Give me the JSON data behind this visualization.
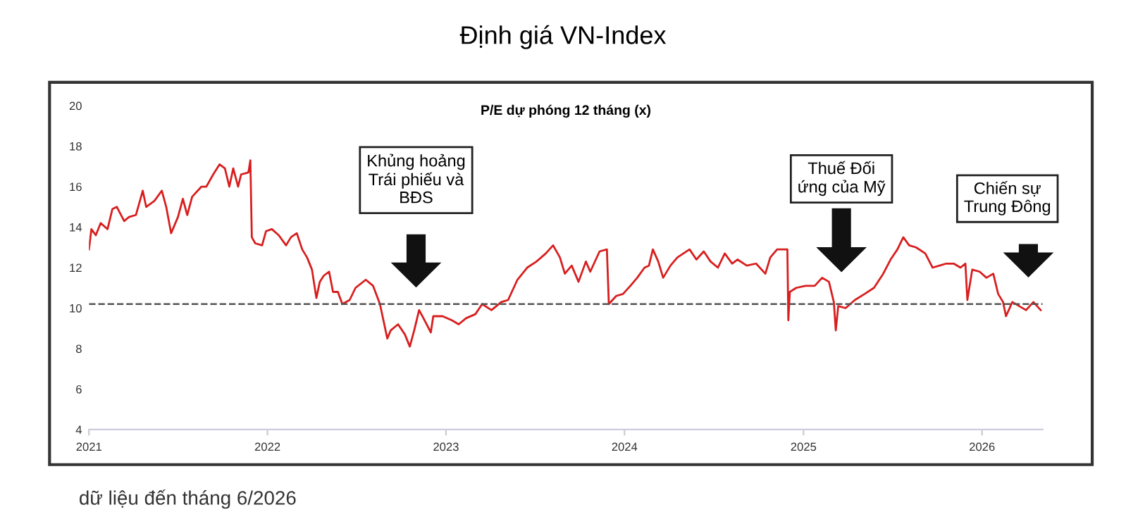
{
  "chart_data": {
    "type": "line",
    "title": "Định giá VN-Index",
    "subtitle": "P/E dự phóng 12 tháng (x)",
    "annotations": [
      "Khủng hoảng\nTrái phiếu và\nBĐS",
      "Thuế Đối\nứng của Mỹ",
      "Chiến sự\nTrung Đông",
      "dữ liệu đến tháng 6/2026"
    ],
    "x": [
      "2021-01-01",
      "2021-01-06",
      "2021-01-15",
      "2021-01-25",
      "2021-02-08",
      "2021-02-18",
      "2021-02-27",
      "2021-03-14",
      "2021-03-24",
      "2021-04-07",
      "2021-04-21",
      "2021-04-28",
      "2021-05-15",
      "2021-05-30",
      "2021-06-08",
      "2021-06-18",
      "2021-07-02",
      "2021-07-12",
      "2021-07-21",
      "2021-07-31",
      "2021-08-19",
      "2021-08-29",
      "2021-09-12",
      "2021-09-25",
      "2021-10-06",
      "2021-10-15",
      "2021-10-23",
      "2021-11-02",
      "2021-11-08",
      "2021-11-23",
      "2021-11-27",
      "2021-11-30",
      "2021-12-07",
      "2021-12-21",
      "2021-12-29",
      "2022-01-10",
      "2022-01-24",
      "2022-02-08",
      "2022-02-18",
      "2022-03-02",
      "2022-03-13",
      "2022-03-23",
      "2022-04-02",
      "2022-04-11",
      "2022-04-18",
      "2022-04-26",
      "2022-05-07",
      "2022-05-15",
      "2022-05-25",
      "2022-06-03",
      "2022-06-18",
      "2022-06-30",
      "2022-07-21",
      "2022-08-05",
      "2022-08-19",
      "2022-09-03",
      "2022-09-10",
      "2022-09-25",
      "2022-10-09",
      "2022-10-19",
      "2022-10-28",
      "2022-11-07",
      "2022-11-16",
      "2022-12-01",
      "2022-12-06",
      "2022-12-25",
      "2023-01-13",
      "2023-01-27",
      "2023-02-11",
      "2023-03-02",
      "2023-03-16",
      "2023-04-04",
      "2023-04-24",
      "2023-05-08",
      "2023-05-27",
      "2023-06-16",
      "2023-07-05",
      "2023-07-24",
      "2023-08-08",
      "2023-08-22",
      "2023-09-01",
      "2023-09-15",
      "2023-09-29",
      "2023-10-14",
      "2023-10-23",
      "2023-11-11",
      "2023-11-26",
      "2023-11-30",
      "2023-12-15",
      "2023-12-29",
      "2024-01-13",
      "2024-01-27",
      "2024-02-11",
      "2024-02-20",
      "2024-02-28",
      "2024-03-10",
      "2024-03-20",
      "2024-04-04",
      "2024-04-18",
      "2024-05-13",
      "2024-05-27",
      "2024-06-11",
      "2024-06-25",
      "2024-07-10",
      "2024-07-24",
      "2024-08-08",
      "2024-08-19",
      "2024-09-07",
      "2024-09-26",
      "2024-10-15",
      "2024-10-25",
      "2024-11-08",
      "2024-11-23",
      "2024-11-29",
      "2024-12-01",
      "2024-12-04",
      "2024-12-17",
      "2025-01-05",
      "2025-01-24",
      "2025-02-08",
      "2025-02-22",
      "2025-03-04",
      "2025-03-08",
      "2025-03-13",
      "2025-03-28",
      "2025-04-16",
      "2025-05-06",
      "2025-05-25",
      "2025-06-13",
      "2025-06-28",
      "2025-07-12",
      "2025-07-24",
      "2025-08-05",
      "2025-08-19",
      "2025-09-07",
      "2025-09-22",
      "2025-10-06",
      "2025-10-20",
      "2025-11-04",
      "2025-11-18",
      "2025-11-28",
      "2025-12-02",
      "2025-12-12",
      "2025-12-27",
      "2026-01-10",
      "2026-01-24",
      "2026-02-03",
      "2026-02-13",
      "2026-02-19",
      "2026-03-04",
      "2026-03-18",
      "2026-04-01",
      "2026-04-16",
      "2026-05-01"
    ],
    "series": [
      {
        "color": "#d81e1e",
        "values": [
          12.9,
          13.9,
          13.6,
          14.2,
          13.9,
          14.9,
          15.0,
          14.3,
          14.5,
          14.6,
          15.8,
          15.0,
          15.3,
          15.8,
          15.0,
          13.7,
          14.5,
          15.4,
          14.6,
          15.5,
          16.0,
          16.0,
          16.6,
          17.1,
          16.9,
          16.0,
          16.9,
          16.0,
          16.6,
          16.7,
          17.3,
          13.5,
          13.2,
          13.1,
          13.8,
          13.9,
          13.6,
          13.1,
          13.5,
          13.7,
          12.9,
          12.5,
          11.9,
          10.5,
          11.3,
          11.6,
          11.8,
          10.8,
          10.8,
          10.2,
          10.4,
          11.0,
          11.4,
          11.1,
          10.2,
          8.5,
          8.9,
          9.2,
          8.7,
          8.1,
          8.9,
          9.9,
          9.5,
          8.8,
          9.6,
          9.6,
          9.4,
          9.2,
          9.5,
          9.7,
          10.2,
          9.9,
          10.3,
          10.4,
          11.4,
          12.0,
          12.3,
          12.7,
          13.1,
          12.5,
          11.7,
          12.1,
          11.3,
          12.3,
          11.8,
          12.8,
          12.9,
          10.2,
          10.6,
          10.7,
          11.1,
          11.5,
          12.0,
          12.1,
          12.9,
          12.3,
          11.5,
          12.1,
          12.5,
          12.9,
          12.4,
          12.8,
          12.3,
          12.0,
          12.7,
          12.2,
          12.4,
          12.1,
          12.2,
          11.7,
          12.5,
          12.9,
          12.9,
          12.9,
          9.4,
          10.8,
          11.0,
          11.1,
          11.1,
          11.5,
          11.3,
          10.3,
          8.9,
          10.1,
          10.0,
          10.4,
          10.7,
          11.0,
          11.7,
          12.4,
          12.9,
          13.5,
          13.1,
          13.0,
          12.7,
          12.0,
          12.1,
          12.2,
          12.2,
          12.0,
          12.2,
          10.4,
          11.9,
          11.8,
          11.5,
          11.7,
          10.7,
          10.3,
          9.6,
          10.3,
          10.1,
          9.9,
          10.3,
          9.9
        ]
      }
    ],
    "xlim": [
      "2021-01-01",
      "2026-05-05"
    ],
    "xticks": [
      {
        "value": "2021-01-01",
        "label": "2021"
      },
      {
        "value": "2022-01-01",
        "label": "2022"
      },
      {
        "value": "2023-01-01",
        "label": "2023"
      },
      {
        "value": "2024-01-01",
        "label": "2024"
      },
      {
        "value": "2025-01-01",
        "label": "2025"
      },
      {
        "value": "2026-01-01",
        "label": "2026"
      }
    ],
    "ylim": [
      4,
      20
    ],
    "yticks": [
      4,
      6,
      8,
      10,
      12,
      14,
      16,
      18,
      20
    ],
    "ref_lines": [
      {
        "axis": "y",
        "value": 10.2,
        "color": "#555555",
        "line_style": "dashed"
      }
    ],
    "grid": false,
    "legend": false
  }
}
